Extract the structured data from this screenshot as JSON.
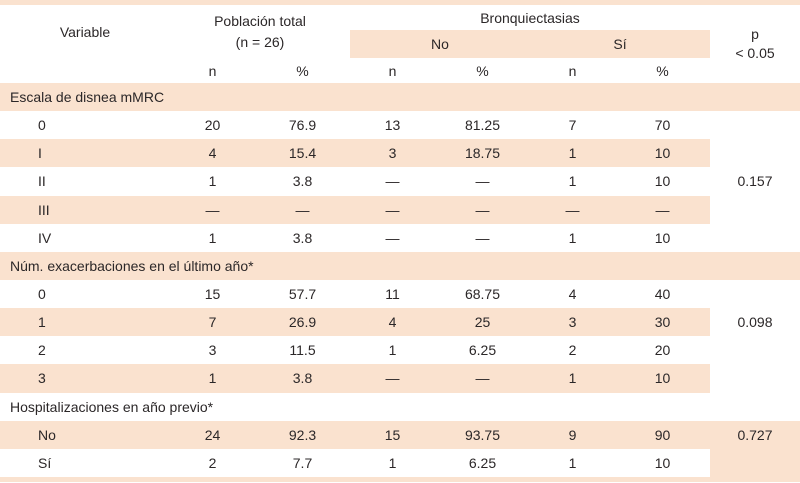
{
  "table": {
    "colors": {
      "stripe": "#FAE2CF",
      "text": "#2B2728"
    },
    "header": {
      "variable_label": "Variable",
      "poblacion_line1": "Población total",
      "poblacion_line2": "(n = 26)",
      "bronquiectasias_label": "Bronquiectasias",
      "no_label": "No",
      "si_label": "Sí",
      "p_line1": "p",
      "p_line2": "< 0.05",
      "n_label": "n",
      "pct_label": "%"
    },
    "sections": [
      {
        "title": "Escala de disnea mMRC",
        "p_value": "0.157",
        "p_row": 2,
        "p_bg": "white",
        "rows": [
          {
            "label": "0",
            "values": [
              "20",
              "76.9",
              "13",
              "81.25",
              "7",
              "70"
            ]
          },
          {
            "label": "I",
            "values": [
              "4",
              "15.4",
              "3",
              "18.75",
              "1",
              "10"
            ]
          },
          {
            "label": "II",
            "values": [
              "1",
              "3.8",
              "—",
              "—",
              "1",
              "10"
            ]
          },
          {
            "label": "III",
            "values": [
              "—",
              "—",
              "—",
              "—",
              "—",
              "—"
            ]
          },
          {
            "label": "IV",
            "values": [
              "1",
              "3.8",
              "—",
              "—",
              "1",
              "10"
            ]
          }
        ]
      },
      {
        "title": "Núm. exacerbaciones en el último año*",
        "p_value": "0.098",
        "p_row": 1,
        "p_bg": "white",
        "rows": [
          {
            "label": "0",
            "values": [
              "15",
              "57.7",
              "11",
              "68.75",
              "4",
              "40"
            ]
          },
          {
            "label": "1",
            "values": [
              "7",
              "26.9",
              "4",
              "25",
              "3",
              "30"
            ]
          },
          {
            "label": "2",
            "values": [
              "3",
              "11.5",
              "1",
              "6.25",
              "2",
              "20"
            ]
          },
          {
            "label": "3",
            "values": [
              "1",
              "3.8",
              "—",
              "—",
              "1",
              "10"
            ]
          }
        ]
      },
      {
        "title": "Hospitalizaciones en año previo*",
        "p_value": "0.727",
        "p_row": 0,
        "p_bg": "peach",
        "rows": [
          {
            "label": "No",
            "values": [
              "24",
              "92.3",
              "15",
              "93.75",
              "9",
              "90"
            ]
          },
          {
            "label": "Sí",
            "values": [
              "2",
              "7.7",
              "1",
              "6.25",
              "1",
              "10"
            ]
          }
        ]
      }
    ]
  }
}
